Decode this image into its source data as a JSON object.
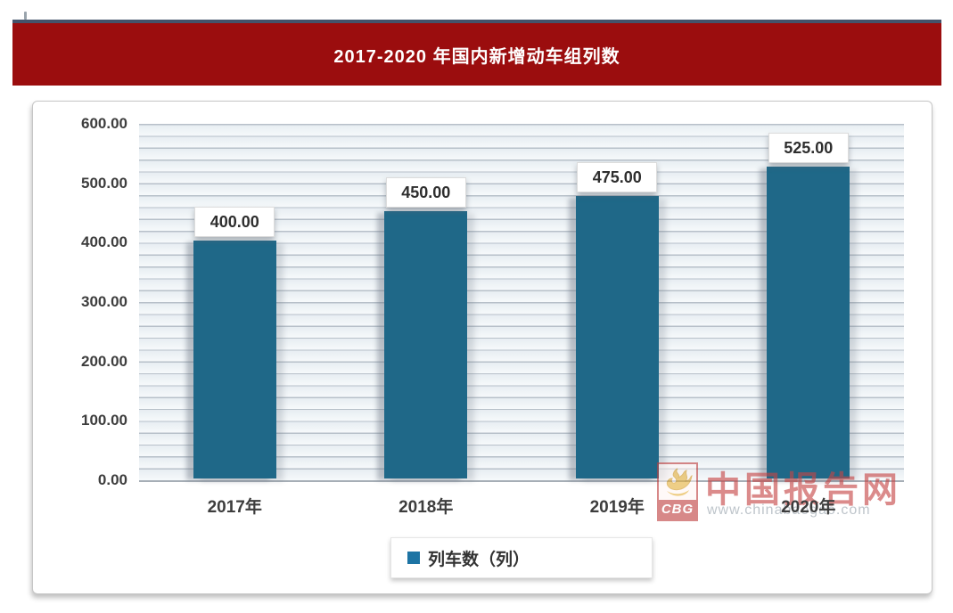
{
  "banner": {
    "title": "2017-2020 年国内新增动车组列数",
    "bg_color": "#9B0D0E",
    "top_line_color": "#44536B",
    "text_color": "#FFFFFF"
  },
  "chart_data": {
    "type": "bar",
    "title": "2017-2020 年国内新增动车组列数",
    "categories": [
      "2017年",
      "2018年",
      "2019年",
      "2020年"
    ],
    "values": [
      400,
      450,
      475,
      525
    ],
    "data_labels": [
      "400.00",
      "450.00",
      "475.00",
      "525.00"
    ],
    "y_ticks": [
      "600.00",
      "500.00",
      "400.00",
      "300.00",
      "200.00",
      "100.00",
      "0.00"
    ],
    "ylim": [
      0,
      600
    ],
    "xlabel": "",
    "ylabel": "",
    "grid": "horizontal-stripes",
    "bar_color": "#1F6888",
    "legend": {
      "label": "列车数（列）",
      "position": "bottom",
      "marker_color": "#1D74A4"
    }
  },
  "watermark": {
    "logo_text": "CBG",
    "site_name": "中国报告网",
    "url": "www.chinabaogao.com",
    "accent_color": "#C64545"
  }
}
